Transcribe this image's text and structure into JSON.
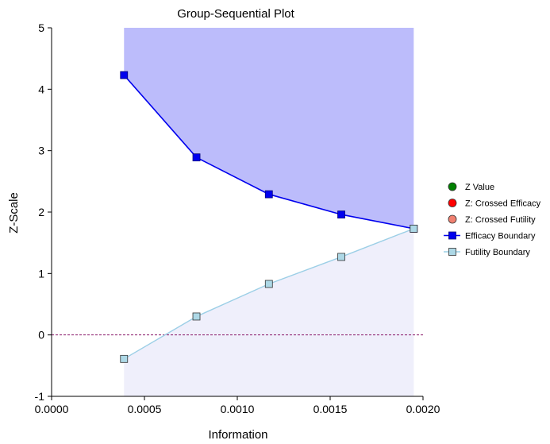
{
  "chart_data": {
    "type": "line",
    "title": "Group-Sequential Plot",
    "xlabel": "Information",
    "ylabel": "Z-Scale",
    "xlim": [
      0,
      0.002
    ],
    "ylim": [
      -1,
      5
    ],
    "x_ticks": [
      0.0,
      0.0005,
      0.001,
      0.0015,
      0.002
    ],
    "x_tick_labels": [
      "0.0000",
      "0.0005",
      "0.0010",
      "0.0015",
      "0.0020"
    ],
    "y_ticks": [
      -1,
      0,
      1,
      2,
      3,
      4,
      5
    ],
    "y_tick_labels": [
      "-1",
      "0",
      "1",
      "2",
      "3",
      "4",
      "5"
    ],
    "reference_line_y": 0,
    "x": [
      0.00039,
      0.00078,
      0.00117,
      0.00156,
      0.00195
    ],
    "series": [
      {
        "name": "Efficacy Boundary",
        "values": [
          4.23,
          2.89,
          2.29,
          1.96,
          1.73
        ],
        "color": "#0000ee",
        "marker_fill": "#0000ee"
      },
      {
        "name": "Futility Boundary",
        "values": [
          -0.39,
          0.3,
          0.83,
          1.27,
          1.73
        ],
        "color": "#9ccfe6",
        "marker_fill": "#add8e6"
      }
    ],
    "legend": [
      {
        "name": "Z Value",
        "kind": "circle",
        "color": "#008000"
      },
      {
        "name": "Z: Crossed Efficacy",
        "kind": "circle",
        "color": "#ff0000"
      },
      {
        "name": "Z: Crossed Futility",
        "kind": "circle",
        "color": "#f08070"
      },
      {
        "name": "Efficacy Boundary",
        "kind": "line-square",
        "color": "#0000ee"
      },
      {
        "name": "Futility Boundary",
        "kind": "line-square",
        "color": "#9ccfe6"
      }
    ],
    "legend_position": "right",
    "efficacy_region_color": "#bcbcfb",
    "futility_region_color": "#efeffb"
  }
}
